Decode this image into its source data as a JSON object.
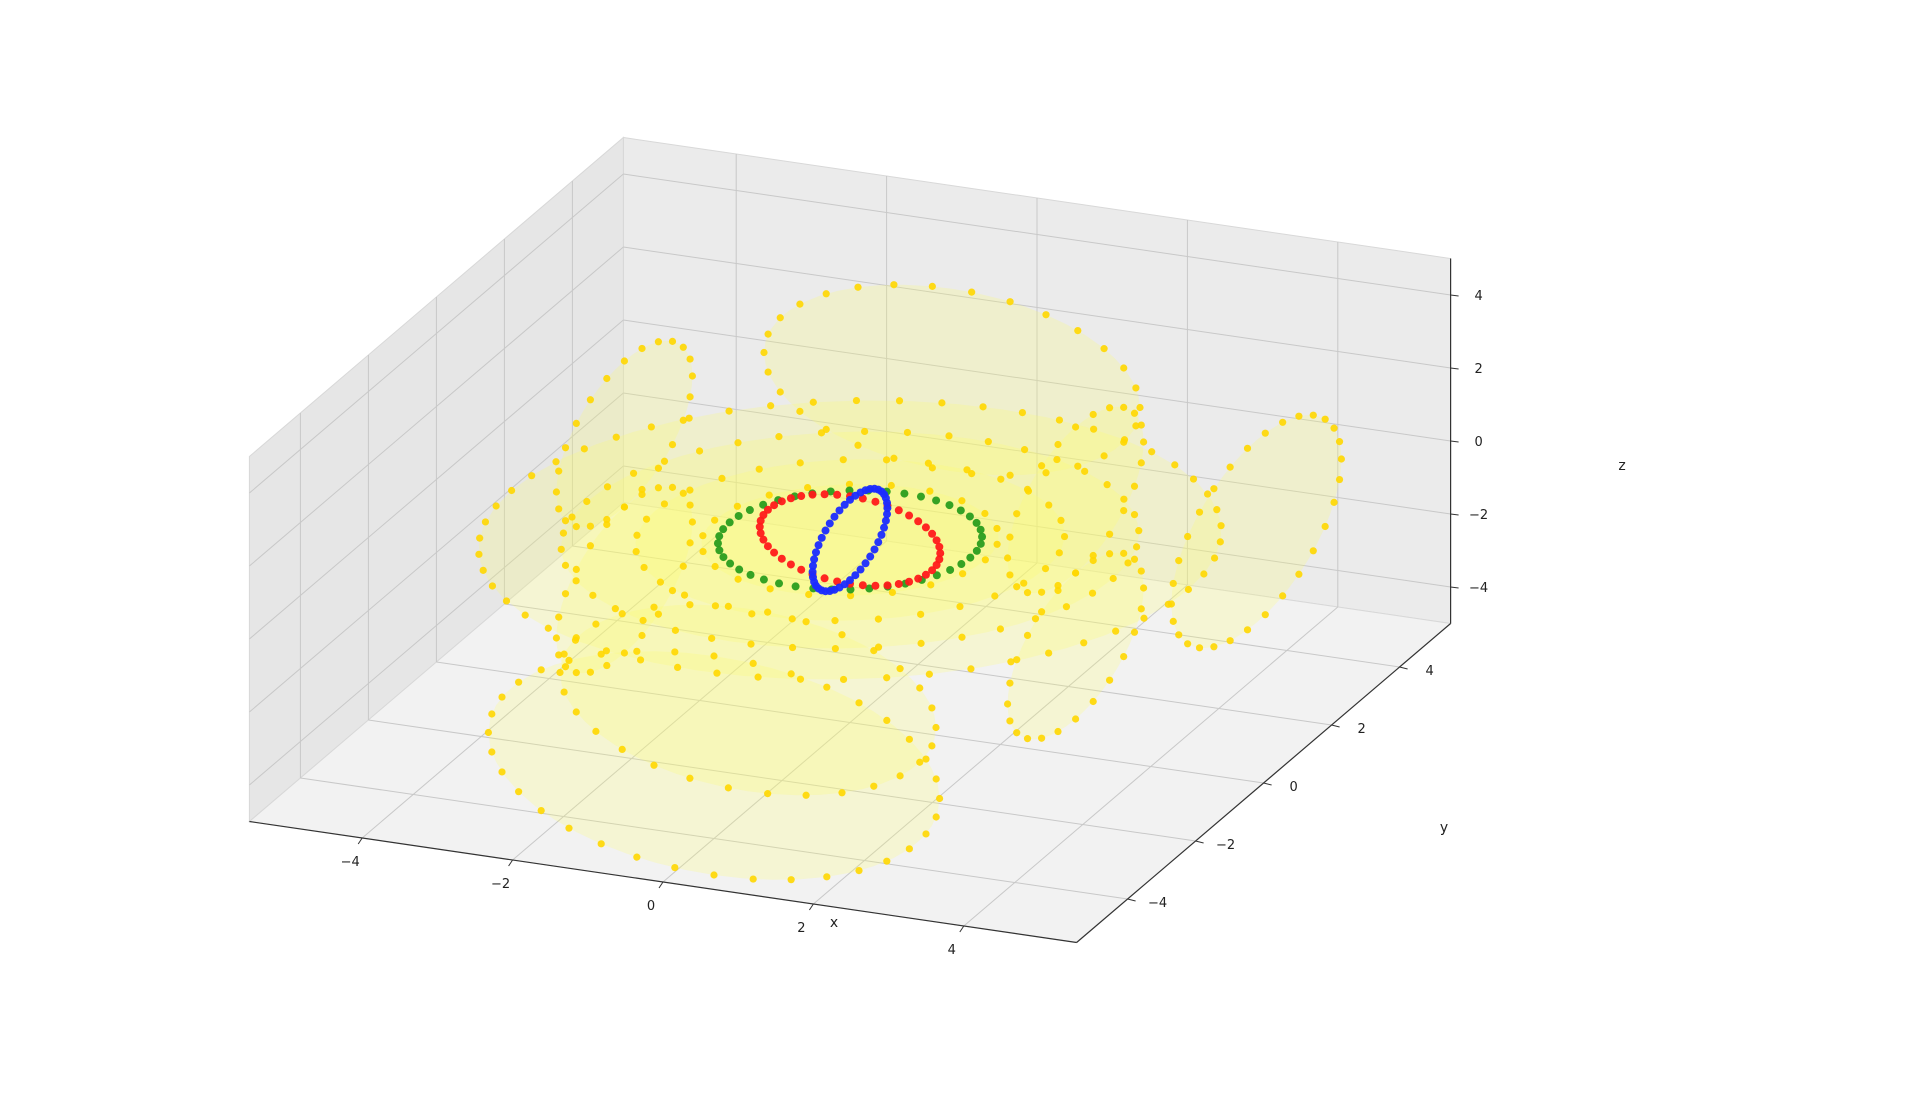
{
  "chart_data": {
    "type": "scatter",
    "projection": "3d",
    "xlabel": "x",
    "ylabel": "y",
    "zlabel": "z",
    "xlim": [
      -5.5,
      5.5
    ],
    "ylim": [
      -5.5,
      5.5
    ],
    "zlim": [
      -5,
      5
    ],
    "x_ticks": [
      -4,
      -2,
      0,
      2,
      4
    ],
    "y_ticks": [
      -4,
      -2,
      0,
      2,
      4
    ],
    "z_ticks": [
      -4,
      -2,
      0,
      2,
      4
    ],
    "x_tick_labels": [
      "−4",
      "−2",
      "0",
      "2",
      "4"
    ],
    "y_tick_labels": [
      "−4",
      "−2",
      "0",
      "2",
      "4"
    ],
    "z_tick_labels": [
      "−4",
      "−2",
      "0",
      "2",
      "4"
    ],
    "grid": true,
    "pane_color": "#f2f2f2",
    "series": [
      {
        "color": "#ffd700",
        "marker": "circle",
        "description_values": "field-line loops around the central rings",
        "loops": [
          {
            "center": [
              -3.0,
              0.0,
              2.0
            ],
            "radius": 2.0,
            "axis": "x"
          },
          {
            "center": [
              3.0,
              0.0,
              2.0
            ],
            "radius": 2.0,
            "axis": "x"
          },
          {
            "center": [
              0.0,
              3.0,
              2.0
            ],
            "radius": 2.5,
            "axis": "y"
          },
          {
            "center": [
              0.0,
              -3.0,
              -2.0
            ],
            "radius": 2.5,
            "axis": "y"
          },
          {
            "center": [
              -3.0,
              0.0,
              -2.0
            ],
            "radius": 2.0,
            "axis": "x"
          },
          {
            "center": [
              3.0,
              0.0,
              -2.0
            ],
            "radius": 2.0,
            "axis": "x"
          },
          {
            "center": [
              0.0,
              0.0,
              0.0
            ],
            "radius": 4.5,
            "axis": "z"
          },
          {
            "center": [
              0.0,
              0.0,
              0.0
            ],
            "radius": 3.5,
            "axis": "z"
          },
          {
            "center": [
              0.0,
              0.0,
              0.0
            ],
            "radius": 2.6,
            "axis": "z"
          },
          {
            "center": [
              0.0,
              0.0,
              0.0
            ],
            "radius": 1.8,
            "axis": "z"
          },
          {
            "center": [
              0.0,
              -4.0,
              -3.0
            ],
            "radius": 3.0,
            "axis": "y"
          },
          {
            "center": [
              4.5,
              2.0,
              0.0
            ],
            "radius": 2.5,
            "axis": "x"
          }
        ]
      },
      {
        "color": "#2a9d1e",
        "marker": "circle",
        "ring": {
          "center": [
            0.0,
            0.0,
            0.0
          ],
          "radius": 1.6,
          "axis": "z"
        }
      },
      {
        "color": "#ff1a1a",
        "marker": "circle",
        "ring": {
          "center": [
            0.0,
            0.0,
            0.0
          ],
          "radius": 1.2,
          "axis": "y"
        }
      },
      {
        "color": "#1a2bff",
        "marker": "circle",
        "ring": {
          "center": [
            0.0,
            0.0,
            0.0
          ],
          "radius": 1.1,
          "axis": "x"
        }
      }
    ]
  }
}
